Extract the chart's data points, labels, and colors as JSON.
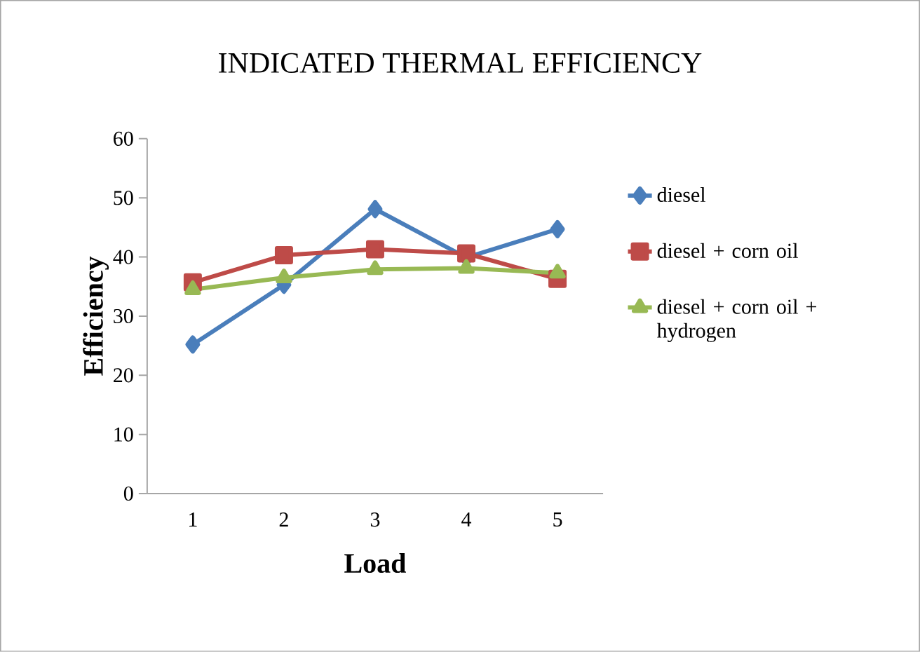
{
  "chart_data": {
    "type": "line",
    "title": "INDICATED THERMAL EFFICIENCY",
    "xlabel": "Load",
    "ylabel": "Efficiency",
    "categories": [
      "1",
      "2",
      "3",
      "4",
      "5"
    ],
    "ylim": [
      0,
      60
    ],
    "yticks": [
      0,
      10,
      20,
      30,
      40,
      50,
      60
    ],
    "legend": "right",
    "grid": false,
    "series": [
      {
        "name": "diesel",
        "color": "#4a7ebb",
        "marker": "diamond",
        "values": [
          25.2,
          35.3,
          48.1,
          39.9,
          44.7
        ]
      },
      {
        "name": "diesel + corn oil",
        "color": "#be4b48",
        "marker": "square",
        "values": [
          35.7,
          40.3,
          41.3,
          40.6,
          36.3
        ]
      },
      {
        "name": "diesel + corn oil + hydrogen",
        "color": "#98b954",
        "marker": "triangle",
        "values": [
          34.5,
          36.5,
          37.9,
          38.1,
          37.3
        ]
      }
    ]
  }
}
